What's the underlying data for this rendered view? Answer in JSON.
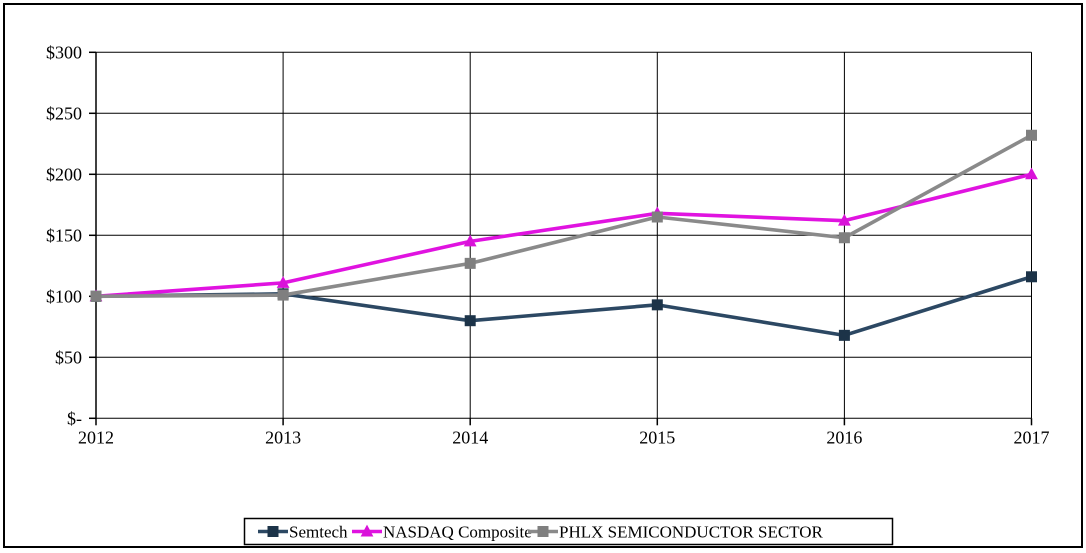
{
  "figure": {
    "background": "#ffffff",
    "border_color": "#000000"
  },
  "chart_data": {
    "type": "line",
    "title": "",
    "xlabel": "",
    "ylabel": "",
    "x": [
      "2012",
      "2013",
      "2014",
      "2015",
      "2016",
      "2017"
    ],
    "series": [
      {
        "name": "Semtech",
        "values": [
          100,
          102,
          80,
          93,
          68,
          116
        ],
        "line_color": "#2C4863",
        "marker_color": "#1C3348",
        "marker": "square"
      },
      {
        "name": "NASDAQ Composite",
        "values": [
          100,
          111,
          145,
          168,
          162,
          200
        ],
        "line_color": "#E013E0",
        "marker_color": "#D912D9",
        "marker": "triangle"
      },
      {
        "name": "PHLX SEMICONDUCTOR SECTOR",
        "values": [
          100,
          101,
          127,
          165,
          148,
          232
        ],
        "line_color": "#8A8A8A",
        "marker_color": "#7F7F7F",
        "marker": "square"
      }
    ],
    "ylim": [
      0,
      300
    ],
    "ytick_step": 50,
    "ytick_labels": [
      "$-",
      "$50",
      "$100",
      "$150",
      "$200",
      "$250",
      "$300"
    ],
    "xtick_labels": [
      "2012",
      "2013",
      "2014",
      "2015",
      "2016",
      "2017"
    ],
    "grid": true,
    "gridline_color": "#000000",
    "legend_position": "bottom"
  }
}
